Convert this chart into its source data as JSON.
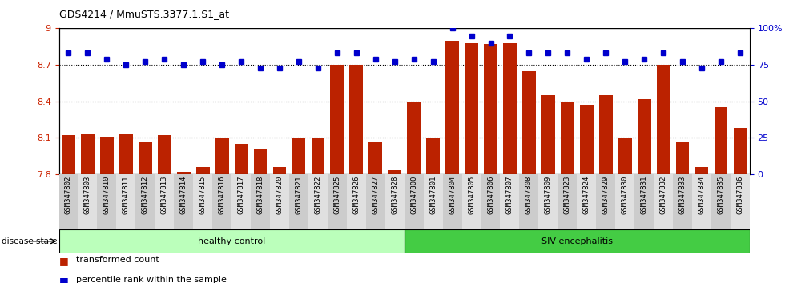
{
  "title": "GDS4214 / MmuSTS.3377.1.S1_at",
  "samples": [
    "GSM347802",
    "GSM347803",
    "GSM347810",
    "GSM347811",
    "GSM347812",
    "GSM347813",
    "GSM347814",
    "GSM347815",
    "GSM347816",
    "GSM347817",
    "GSM347818",
    "GSM347820",
    "GSM347821",
    "GSM347822",
    "GSM347825",
    "GSM347826",
    "GSM347827",
    "GSM347828",
    "GSM347800",
    "GSM347801",
    "GSM347804",
    "GSM347805",
    "GSM347806",
    "GSM347807",
    "GSM347808",
    "GSM347809",
    "GSM347823",
    "GSM347824",
    "GSM347829",
    "GSM347830",
    "GSM347831",
    "GSM347832",
    "GSM347833",
    "GSM347834",
    "GSM347835",
    "GSM347836"
  ],
  "bar_values": [
    8.12,
    8.13,
    8.11,
    8.13,
    8.07,
    8.12,
    7.82,
    7.86,
    8.1,
    8.05,
    8.01,
    7.86,
    8.1,
    8.1,
    8.7,
    8.7,
    8.07,
    7.83,
    8.4,
    8.1,
    8.9,
    8.88,
    8.87,
    8.88,
    8.65,
    8.45,
    8.4,
    8.37,
    8.45,
    8.1,
    8.42,
    8.7,
    8.07,
    7.86,
    8.35,
    8.18
  ],
  "percentile_values": [
    83,
    83,
    79,
    75,
    77,
    79,
    75,
    77,
    75,
    77,
    73,
    73,
    77,
    73,
    83,
    83,
    79,
    77,
    79,
    77,
    100,
    95,
    90,
    95,
    83,
    83,
    83,
    79,
    83,
    77,
    79,
    83,
    77,
    73,
    77,
    83
  ],
  "healthy_count": 18,
  "bar_color": "#bb2200",
  "dot_color": "#0000cc",
  "ylim_left": [
    7.8,
    9.0
  ],
  "ylim_right": [
    0,
    100
  ],
  "yticks_left": [
    7.8,
    8.1,
    8.4,
    8.7,
    9.0
  ],
  "ytick_labels_left": [
    "7.8",
    "8.1",
    "8.4",
    "8.7",
    "9"
  ],
  "yticks_right": [
    0,
    25,
    50,
    75,
    100
  ],
  "ytick_labels_right": [
    "0",
    "25",
    "50",
    "75",
    "100%"
  ],
  "healthy_color": "#bbffbb",
  "siv_color": "#44cc44",
  "healthy_label": "healthy control",
  "siv_label": "SIV encephalitis",
  "disease_state_label": "disease state",
  "legend_bar_label": "transformed count",
  "legend_dot_label": "percentile rank within the sample",
  "grid_values": [
    8.1,
    8.4,
    8.7
  ],
  "bar_width": 0.7
}
